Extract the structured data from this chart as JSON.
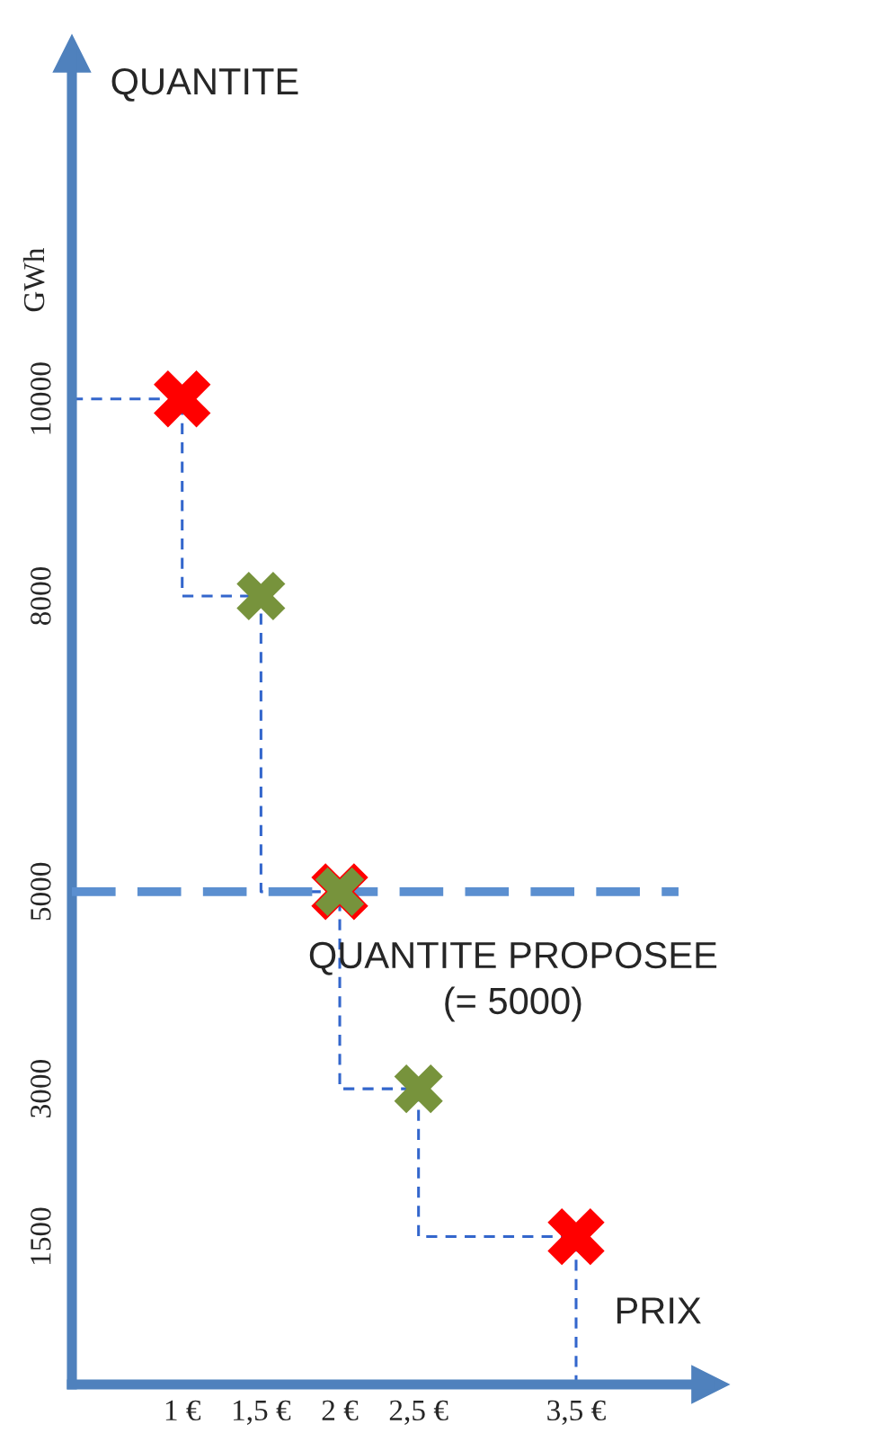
{
  "chart_data": {
    "type": "scatter",
    "ylabel": "QUANTITE",
    "xlabel": "PRIX",
    "annotations": [
      "GWh"
    ],
    "xlim": [
      0.3,
      4.35
    ],
    "ylim": [
      0,
      13500
    ],
    "xticks": [
      {
        "value": 1,
        "label": "1 €"
      },
      {
        "value": 1.5,
        "label": "1,5 €"
      },
      {
        "value": 2,
        "label": "2 €"
      },
      {
        "value": 2.5,
        "label": "2,5 €"
      },
      {
        "value": 3.5,
        "label": "3,5 €"
      }
    ],
    "yticks": [
      1500,
      3000,
      5000,
      8000,
      10000
    ],
    "marker": "cross",
    "grid": false,
    "legend": false,
    "series": [
      {
        "type": "line",
        "line_style": "dashed",
        "marker": "none",
        "color": "#3366cc",
        "x": [
          0.3,
          1,
          1,
          1.5,
          1.5,
          2,
          2,
          2.5,
          2.5,
          3.5,
          3.5
        ],
        "values": [
          10000,
          10000,
          8000,
          8000,
          5000,
          5000,
          3000,
          3000,
          1500,
          1500,
          0
        ]
      },
      {
        "color": "#ff0000",
        "x": [
          1,
          2,
          3.5
        ],
        "values": [
          10000,
          5000,
          1500
        ]
      },
      {
        "color": "#77933c",
        "x": [
          1.5,
          2,
          2.5
        ],
        "values": [
          8000,
          5000,
          3000
        ]
      }
    ],
    "ref_lines": [
      {
        "axis": "y",
        "value": 5000,
        "label": "QUANTITE PROPOSEE\n(= 5000)",
        "color": "#5b8fd0",
        "line_style": "dashed"
      }
    ]
  }
}
